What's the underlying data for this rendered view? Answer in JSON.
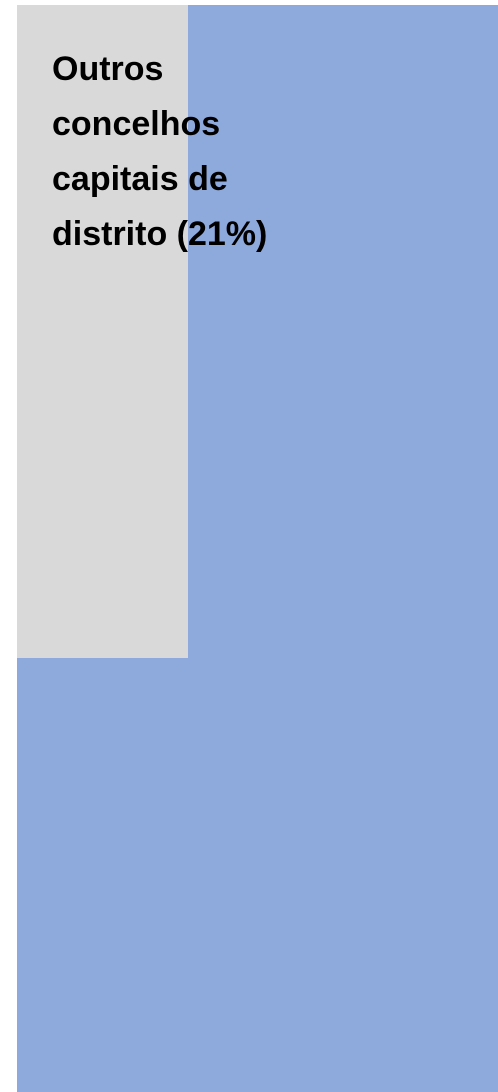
{
  "label": "Outros concelhos capitais de distrito (21%)"
}
